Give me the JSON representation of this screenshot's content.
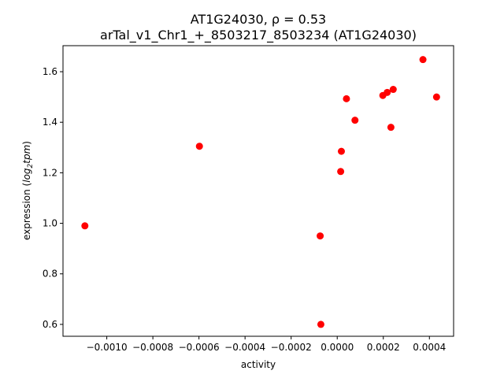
{
  "chart_data": {
    "type": "scatter",
    "title_line1": "AT1G24030, ρ = 0.53",
    "title_line2": "arTal_v1_Chr1_+_8503217_8503234 (AT1G24030)",
    "xlabel": "activity",
    "ylabel_main": "expression (",
    "ylabel_italic": "log",
    "ylabel_sub": "2",
    "ylabel_italic2": "tpm",
    "ylabel_close": ")",
    "xlim": [
      -0.00119,
      0.000505
    ],
    "ylim": [
      0.553,
      1.703
    ],
    "x_ticks": [
      -0.001,
      -0.0008,
      -0.0006,
      -0.0004,
      -0.0002,
      0.0,
      0.0002,
      0.0004
    ],
    "x_tick_labels": [
      "−0.0010",
      "−0.0008",
      "−0.0006",
      "−0.0004",
      "−0.0002",
      "0.0000",
      "0.0002",
      "0.0004"
    ],
    "y_ticks": [
      0.6,
      0.8,
      1.0,
      1.2,
      1.4,
      1.6
    ],
    "y_tick_labels": [
      "0.6",
      "0.8",
      "1.0",
      "1.2",
      "1.4",
      "1.6"
    ],
    "grid": false,
    "marker_color": "#ff0000",
    "points": [
      {
        "x": -0.001095,
        "y": 0.99
      },
      {
        "x": -0.000598,
        "y": 1.305
      },
      {
        "x": -7.4e-05,
        "y": 0.95
      },
      {
        "x": -7.1e-05,
        "y": 0.6
      },
      {
        "x": 1.5e-05,
        "y": 1.205
      },
      {
        "x": 1.8e-05,
        "y": 1.285
      },
      {
        "x": 4e-05,
        "y": 1.493
      },
      {
        "x": 7.7e-05,
        "y": 1.408
      },
      {
        "x": 0.000198,
        "y": 1.506
      },
      {
        "x": 0.000217,
        "y": 1.518
      },
      {
        "x": 0.000233,
        "y": 1.38
      },
      {
        "x": 0.000243,
        "y": 1.53
      },
      {
        "x": 0.000372,
        "y": 1.648
      },
      {
        "x": 0.000431,
        "y": 1.5
      }
    ]
  }
}
